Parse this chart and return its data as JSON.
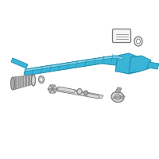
{
  "background_color": "#ffffff",
  "hl": "#3ab5d8",
  "hl_dark": "#1a8aaa",
  "hl_light": "#7fd0e8",
  "gray_light": "#d8d8d8",
  "gray_mid": "#aaaaaa",
  "gray_dark": "#777777",
  "outline": "#666666",
  "figsize": [
    2.0,
    2.0
  ],
  "dpi": 100
}
